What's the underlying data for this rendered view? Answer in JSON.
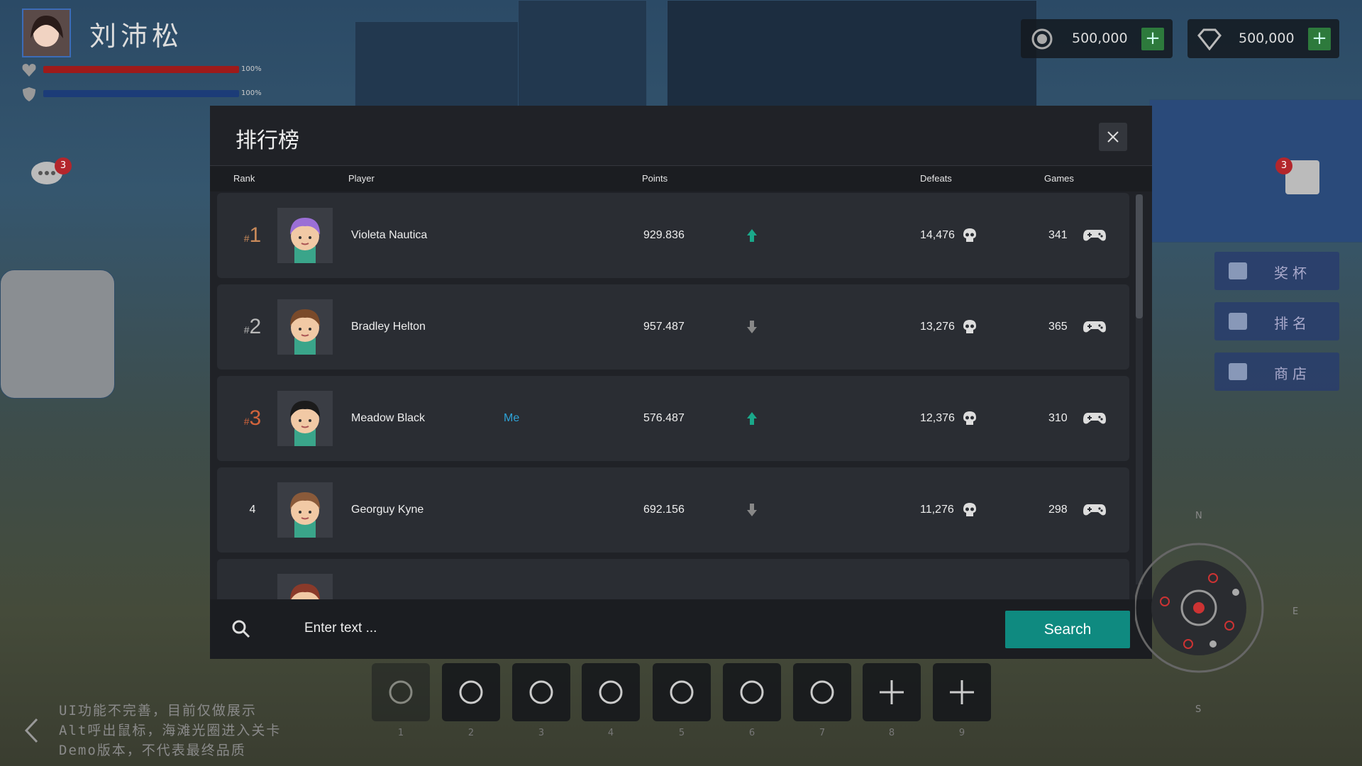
{
  "player": {
    "name": "刘沛松",
    "health": "100%",
    "shield": "100%"
  },
  "currency": [
    "500,000",
    "500,000"
  ],
  "chat_badge": "3",
  "quest_badge": "3",
  "leaderboard": {
    "title": "排行榜",
    "columns": [
      "Rank",
      "Player",
      "Points",
      "Defeats",
      "Games"
    ],
    "rows": [
      {
        "rank_prefix": "#",
        "rank": "1",
        "name": "Violeta Nautica",
        "points": "929.836",
        "trend": "up",
        "defeats": "14,476",
        "games": "341",
        "hair": "#9b6fd6"
      },
      {
        "rank_prefix": "#",
        "rank": "2",
        "name": "Bradley Helton",
        "points": "957.487",
        "trend": "down",
        "defeats": "13,276",
        "games": "365",
        "hair": "#7a4a2a"
      },
      {
        "rank_prefix": "#",
        "rank": "3",
        "name": "Meadow Black",
        "tag": "Me",
        "points": "576.487",
        "trend": "up",
        "defeats": "12,376",
        "games": "310",
        "hair": "#1b1b1b"
      },
      {
        "rank": "4",
        "name": "Georguy Kyne",
        "points": "692.156",
        "trend": "down",
        "defeats": "11,276",
        "games": "298",
        "hair": "#8a5a3a"
      }
    ],
    "search_placeholder": "Enter text ...",
    "search_button": "Search"
  },
  "side_menu": [
    "奖杯",
    "排名",
    "商店"
  ],
  "hotbar": [
    "1",
    "2",
    "3",
    "4",
    "5",
    "6",
    "7",
    "8",
    "9"
  ],
  "notice": [
    "UI功能不完善，目前仅做展示",
    "Alt呼出鼠标，海滩光圈进入关卡",
    "Demo版本，不代表最终品质"
  ],
  "compass": [
    "N",
    "E",
    "S"
  ]
}
